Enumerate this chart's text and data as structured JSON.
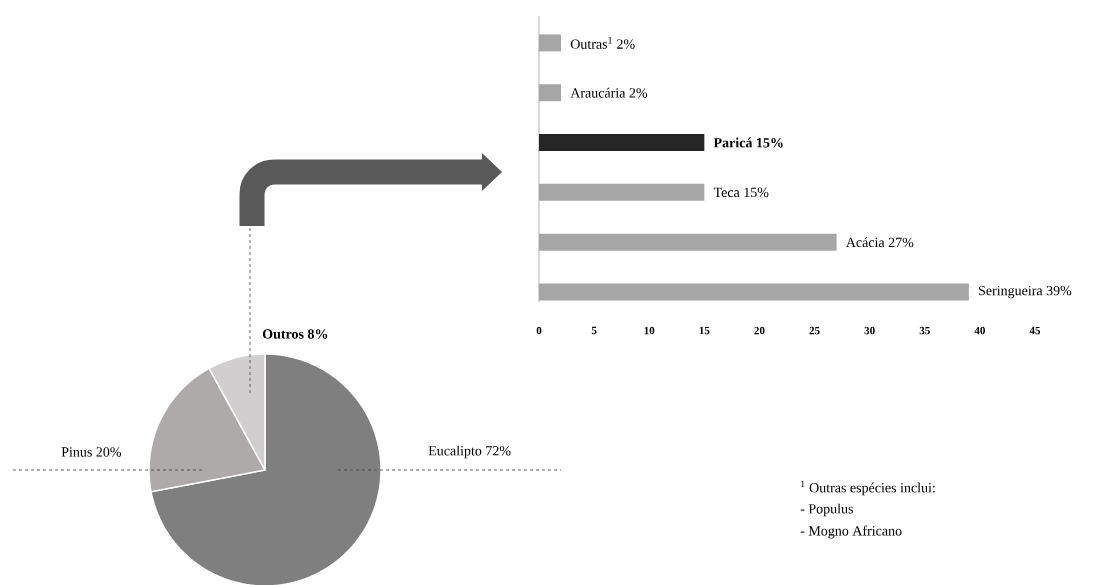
{
  "chart_data": [
    {
      "type": "pie",
      "categories": [
        "Eucalipto",
        "Pinus",
        "Outros"
      ],
      "values": [
        72,
        20,
        8
      ],
      "colors": [
        "#7f7f7f",
        "#aeaaaa",
        "#d0cece"
      ],
      "value_labels": [
        "72%",
        "20%",
        "8%"
      ]
    },
    {
      "type": "bar",
      "orientation": "horizontal",
      "categories": [
        "Outras$^{1}$ 2%",
        "Araucária 2%",
        "Paricá 15%",
        "Teca 15%",
        "Acácia 27%",
        "Seringueira 39%"
      ],
      "values": [
        2,
        2,
        15,
        15,
        27,
        39
      ],
      "colors": [
        "#a6a6a6",
        "#a6a6a6",
        "#262626",
        "#a6a6a6",
        "#a6a6a6",
        "#a6a6a6"
      ],
      "xlim": [
        0,
        45
      ],
      "xticks": [
        0,
        5,
        10,
        15,
        20,
        25,
        30,
        35,
        40,
        45
      ],
      "tick_labels": "x",
      "annotations": [
        "$^{1}$ Outras espécies inclui:",
        "- Populus",
        "- Mogno Africano"
      ]
    }
  ]
}
